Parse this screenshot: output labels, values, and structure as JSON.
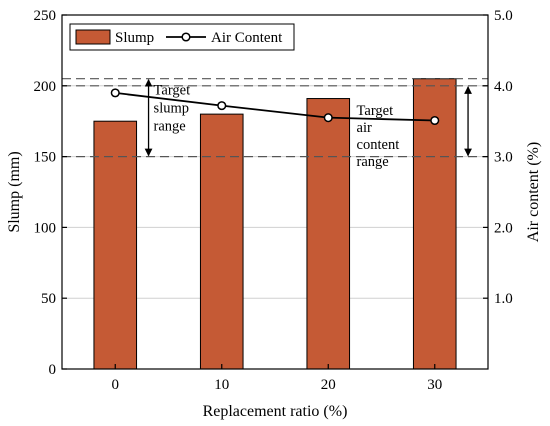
{
  "chart_data": {
    "type": "bar",
    "categories": [
      "0",
      "10",
      "20",
      "30"
    ],
    "xlabel": "Replacement ratio (%)",
    "ylabel": "Slump (mm)",
    "y2label": "Air content (%)",
    "ylim": [
      0,
      250
    ],
    "y2lim": [
      0,
      5.0
    ],
    "y_ticks": [
      "0",
      "50",
      "100",
      "150",
      "200",
      "250"
    ],
    "y2_ticks": [
      "1.0",
      "2.0",
      "3.0",
      "4.0",
      "5.0"
    ],
    "grid": "horizontal",
    "legend_position": "top-left",
    "series": [
      {
        "name": "Slump",
        "kind": "bar",
        "axis": "left",
        "color": "#c55a35",
        "values": [
          175,
          180,
          191,
          205
        ]
      },
      {
        "name": "Air Content",
        "kind": "line",
        "axis": "right",
        "color": "#000000",
        "marker": "open-circle",
        "values": [
          3.9,
          3.72,
          3.55,
          3.51
        ]
      }
    ],
    "reference_lines": [
      {
        "axis": "left",
        "values": [
          150,
          205
        ],
        "style": "dashed"
      },
      {
        "axis": "right",
        "values": [
          3.0,
          4.0
        ],
        "style": "dashed"
      }
    ],
    "annotations": [
      {
        "lines": [
          "Target",
          "slump",
          "range"
        ],
        "axis": "left",
        "range": [
          150,
          205
        ]
      },
      {
        "lines": [
          "Target",
          "air",
          "content",
          "range"
        ],
        "axis": "right",
        "range": [
          3.0,
          4.0
        ]
      }
    ]
  }
}
